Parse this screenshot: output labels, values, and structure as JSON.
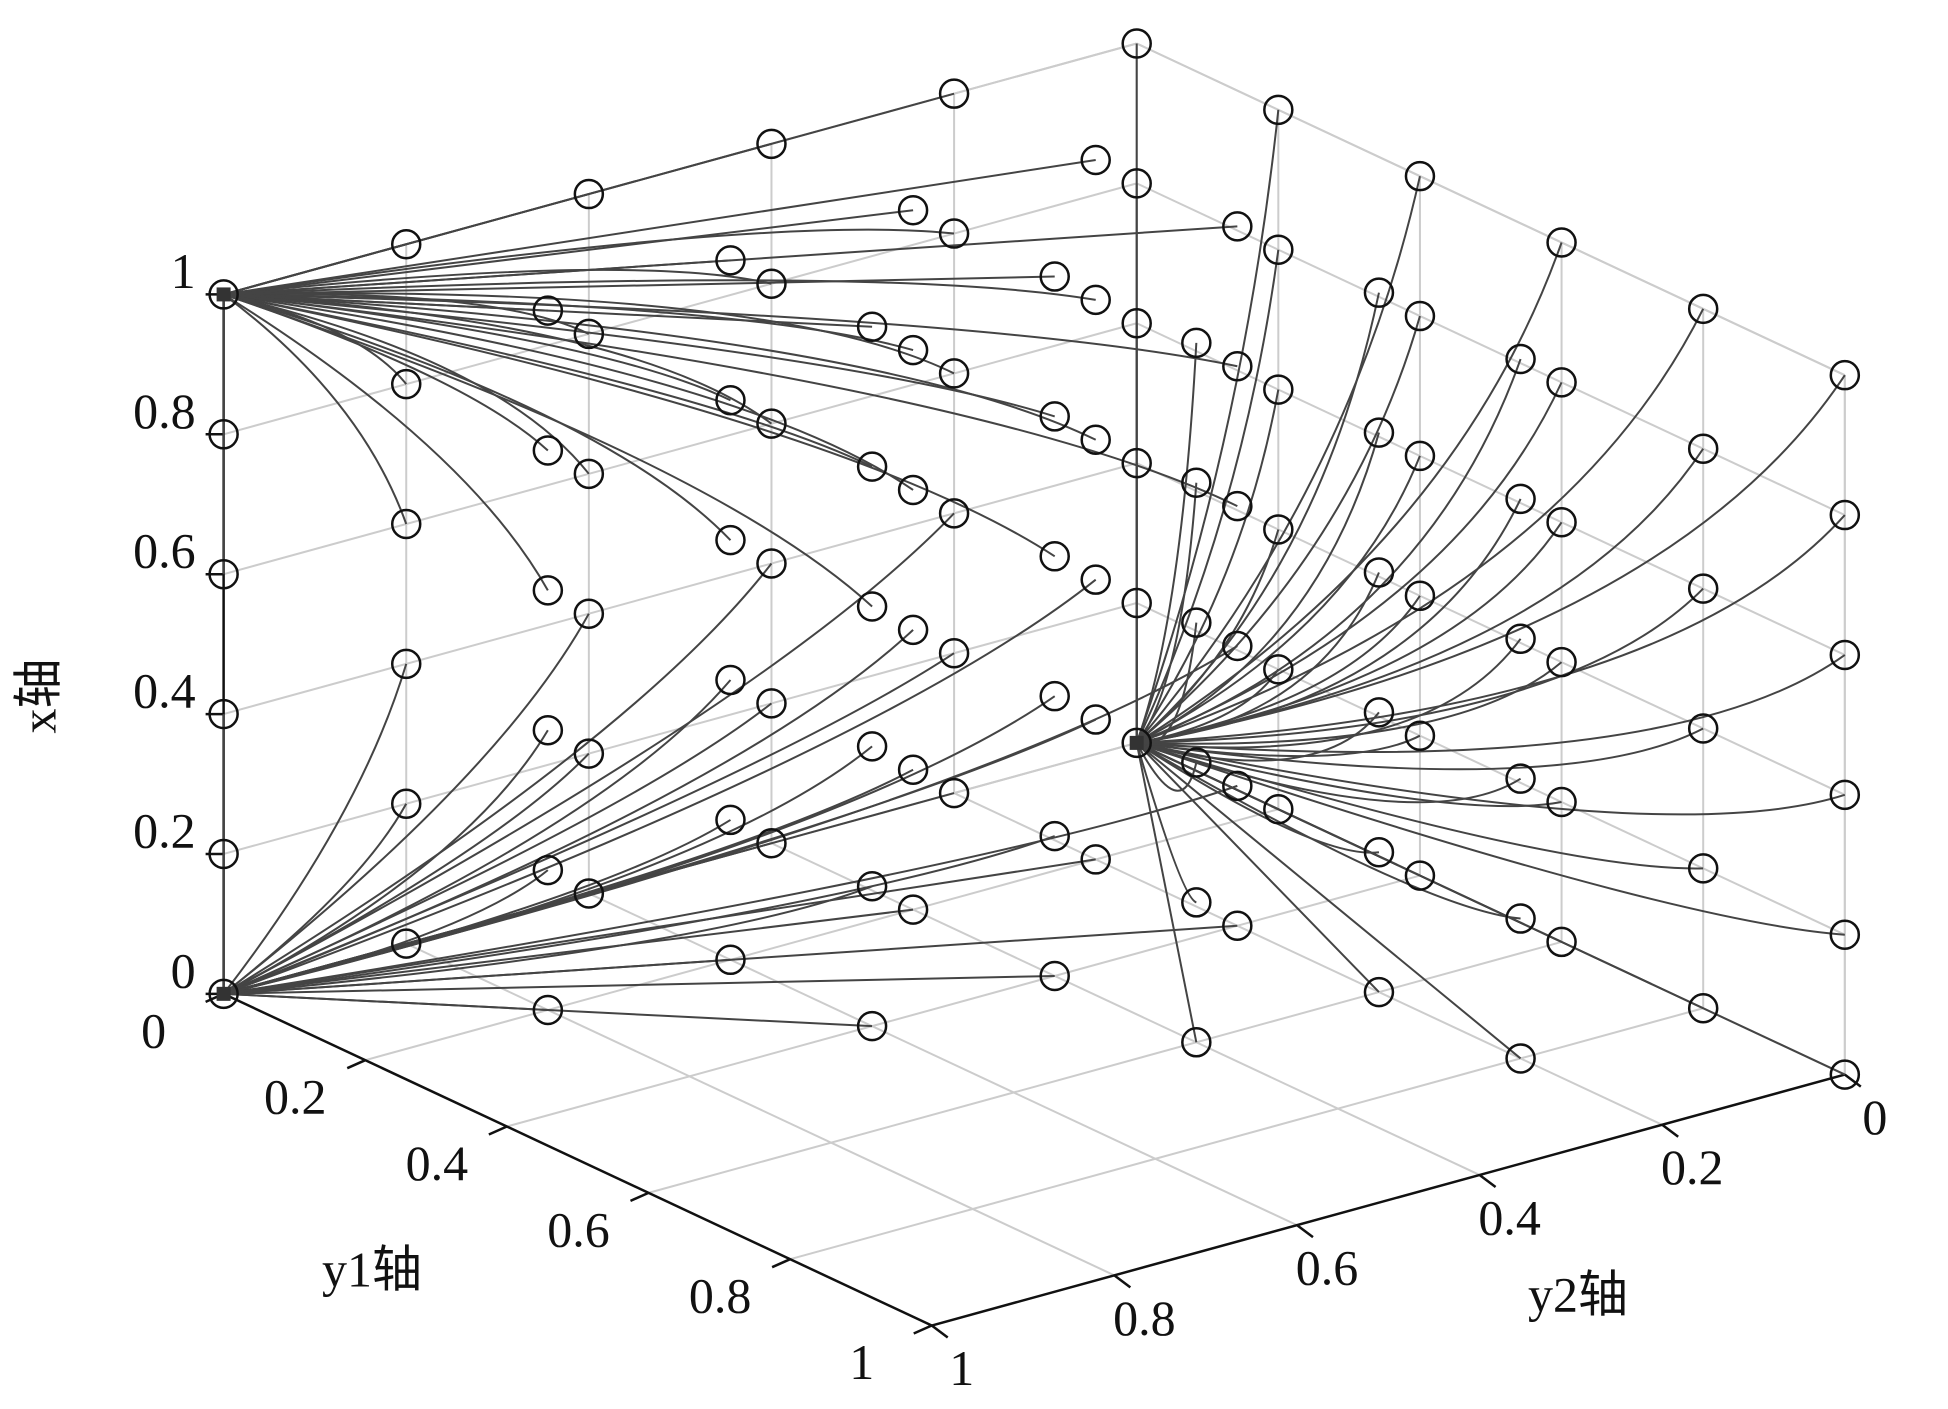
{
  "chart_data": {
    "type": "trajectory3d",
    "xlabel": "x轴",
    "y1label": "y1轴",
    "y2label": "y2轴",
    "xlim": [
      0,
      1
    ],
    "y1lim": [
      0,
      1
    ],
    "y2lim": [
      0,
      1
    ],
    "xticks": [
      0,
      0.2,
      0.4,
      0.6,
      0.8,
      1
    ],
    "y1ticks": [
      0,
      0.2,
      0.4,
      0.6,
      0.8,
      1
    ],
    "y2ticks": [
      0,
      0.2,
      0.4,
      0.6,
      0.8,
      1
    ],
    "grid": true,
    "x_levels": [
      0,
      0.2,
      0.4,
      0.6,
      0.8,
      1
    ],
    "grid_points": {
      "y1": [
        0,
        0,
        0,
        0,
        0,
        0,
        0.2,
        0.2,
        0.2,
        0.2,
        0.2,
        0.4,
        0.4,
        0.4,
        0.4,
        0.6,
        0.6,
        0.6,
        0.8,
        0.8,
        1
      ],
      "y2": [
        1,
        0.8,
        0.6,
        0.4,
        0.2,
        0,
        0.8,
        0.6,
        0.4,
        0.2,
        0,
        0.6,
        0.4,
        0.2,
        0,
        0.4,
        0.2,
        0,
        0.2,
        0,
        0
      ]
    },
    "sinks": [
      {
        "x": 1,
        "y1": 0,
        "y2": 1
      },
      {
        "x": 0,
        "y1": 0,
        "y2": 1
      },
      {
        "x": 0,
        "y1": 0,
        "y2": 0
      }
    ],
    "sink_index": [
      [
        1,
        1,
        1,
        1,
        1,
        2,
        1,
        1,
        1,
        1,
        2,
        1,
        1,
        1,
        2,
        2,
        2,
        2,
        2,
        2,
        2
      ],
      [
        1,
        1,
        1,
        1,
        1,
        2,
        1,
        1,
        1,
        1,
        2,
        1,
        1,
        1,
        2,
        2,
        2,
        2,
        2,
        2,
        2
      ],
      [
        1,
        1,
        1,
        1,
        1,
        2,
        1,
        1,
        1,
        1,
        2,
        1,
        1,
        1,
        2,
        2,
        2,
        2,
        2,
        2,
        2
      ],
      [
        0,
        0,
        0,
        0,
        0,
        2,
        0,
        0,
        0,
        0,
        2,
        0,
        0,
        0,
        2,
        2,
        2,
        2,
        2,
        2,
        2
      ],
      [
        0,
        0,
        0,
        0,
        0,
        2,
        0,
        0,
        0,
        0,
        2,
        0,
        0,
        0,
        2,
        2,
        2,
        2,
        2,
        2,
        2
      ],
      [
        0,
        0,
        0,
        0,
        0,
        2,
        0,
        0,
        0,
        0,
        2,
        0,
        0,
        0,
        2,
        2,
        2,
        2,
        2,
        2,
        2
      ]
    ],
    "marker_color": "#111111",
    "line_color": "#444444",
    "grid_color": "#cccccc"
  }
}
